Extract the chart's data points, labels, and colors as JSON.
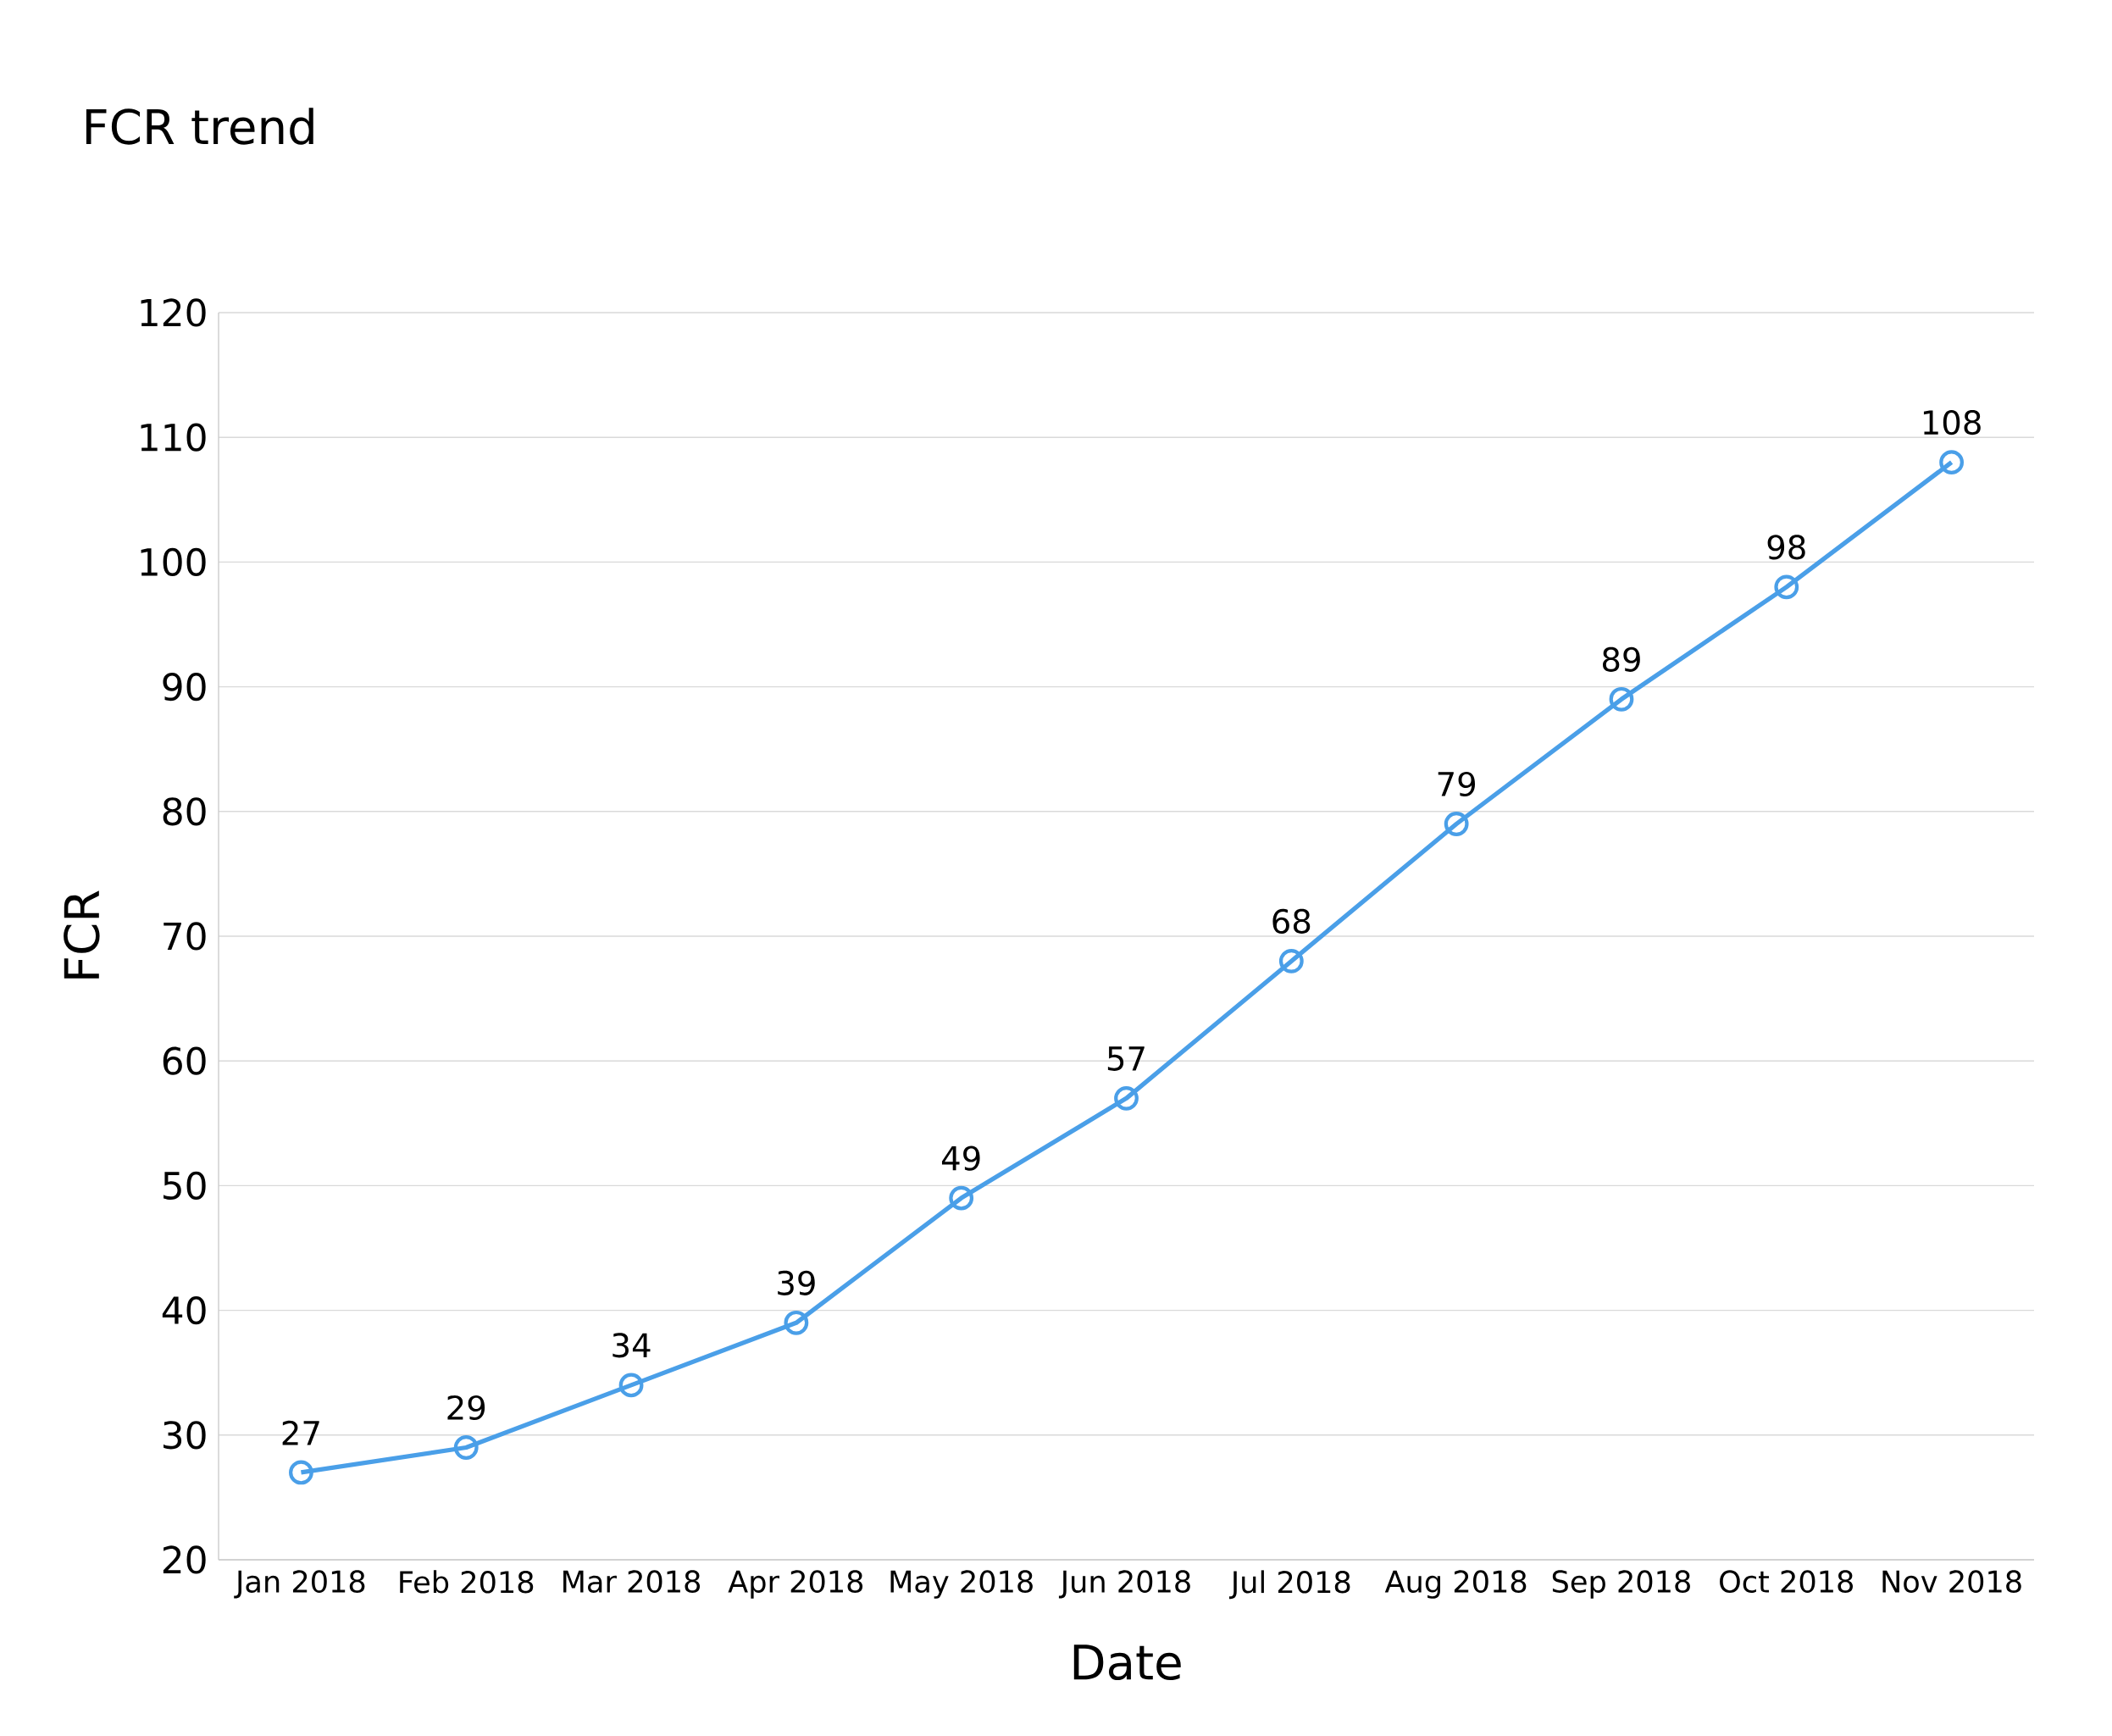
{
  "chart_data": {
    "type": "line",
    "title": "FCR trend",
    "xlabel": "Date",
    "ylabel": "FCR",
    "categories": [
      "Jan 2018",
      "Feb 2018",
      "Mar 2018",
      "Apr 2018",
      "May 2018",
      "Jun 2018",
      "Jul 2018",
      "Aug 2018",
      "Sep 2018",
      "Oct 2018",
      "Nov 2018"
    ],
    "values": [
      27,
      29,
      34,
      39,
      49,
      57,
      68,
      79,
      89,
      98,
      108
    ],
    "color": "#4a9fe8",
    "ylim": [
      20,
      120
    ],
    "yticks": [
      20,
      30,
      40,
      50,
      60,
      70,
      80,
      90,
      100,
      110,
      120
    ],
    "grid": "y",
    "marker": "circle",
    "line_style": "solid",
    "data_labels": true
  }
}
